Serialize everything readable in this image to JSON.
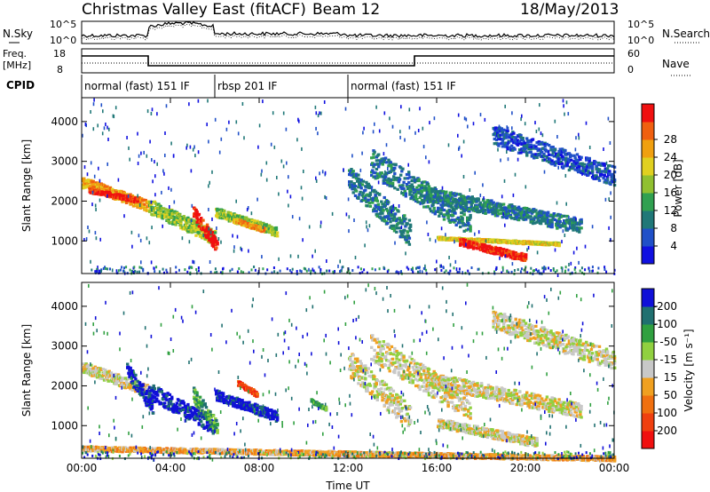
{
  "header": {
    "title": "Christmas Valley East (fitACF)",
    "beam": "Beam 12",
    "date": "18/May/2013"
  },
  "top_panels": {
    "nsky": {
      "label": "N.Sky",
      "ticks": [
        "10^5",
        "10^0"
      ],
      "right_label": "N.Search",
      "right_ticks": [
        "10^5",
        "10^0"
      ]
    },
    "freq": {
      "label_lines": [
        "Freq.",
        "[MHz]"
      ],
      "ticks": [
        "18",
        "8"
      ],
      "right_label": "Nave",
      "right_ticks": [
        "60",
        "0"
      ]
    },
    "cpid": {
      "label": "CPID",
      "programs": [
        {
          "name": "normal (fast) 151 IF",
          "start_hour": 0.0
        },
        {
          "name": "rbsp 201 IF",
          "start_hour": 6.0
        },
        {
          "name": "normal (fast) 151 IF",
          "start_hour": 12.0
        }
      ]
    }
  },
  "chart_data": [
    {
      "type": "heatmap",
      "panel": "power",
      "ylabel": "Slant Range [km]",
      "xlabel": "",
      "x_range_hours": [
        0,
        24
      ],
      "y_range_km": [
        180,
        4600
      ],
      "yticks": [
        1000,
        2000,
        3000,
        4000
      ],
      "colorbar": {
        "label": "Power [dB]",
        "ticks": [
          "4",
          "8",
          "12",
          "16",
          "20",
          "24",
          "28"
        ],
        "colors": [
          "#1010e0",
          "#2050c8",
          "#207878",
          "#30a050",
          "#90c030",
          "#e0d020",
          "#f0a010",
          "#f06010",
          "#f01010"
        ]
      },
      "bands": [
        {
          "t0": 0.0,
          "t1": 3.0,
          "r0": 2500,
          "r1": 1900,
          "level": 6
        },
        {
          "t0": 0.3,
          "t1": 2.5,
          "r0": 2300,
          "r1": 2050,
          "level": 8
        },
        {
          "t0": 3.0,
          "t1": 6.0,
          "r0": 1900,
          "r1": 1100,
          "level": 4
        },
        {
          "t0": 5.0,
          "t1": 6.1,
          "r0": 1700,
          "r1": 900,
          "level": 8
        },
        {
          "t0": 6.0,
          "t1": 8.8,
          "r0": 1750,
          "r1": 1250,
          "level": 4
        },
        {
          "t0": 6.8,
          "t1": 8.2,
          "r0": 1550,
          "r1": 1300,
          "level": 6
        },
        {
          "t0": 12.0,
          "t1": 14.8,
          "r0": 2600,
          "r1": 1200,
          "level": 2
        },
        {
          "t0": 13.0,
          "t1": 17.5,
          "r0": 3000,
          "r1": 1500,
          "level": 2
        },
        {
          "t0": 16.0,
          "t1": 21.5,
          "r0": 1100,
          "r1": 950,
          "level": 5
        },
        {
          "t0": 17.0,
          "t1": 20.0,
          "r0": 1000,
          "r1": 600,
          "level": 8
        },
        {
          "t0": 18.5,
          "t1": 24.0,
          "r0": 3700,
          "r1": 2650,
          "level": 1
        },
        {
          "t0": 15.5,
          "t1": 22.5,
          "r0": 2200,
          "r1": 1400,
          "level": 2
        }
      ]
    },
    {
      "type": "heatmap",
      "panel": "velocity",
      "ylabel": "Slant Range [km]",
      "xlabel": "Time UT",
      "x_range_hours": [
        0,
        24
      ],
      "y_range_km": [
        180,
        4600
      ],
      "yticks": [
        1000,
        2000,
        3000,
        4000
      ],
      "xticks": [
        "00:00",
        "04:00",
        "08:00",
        "12:00",
        "16:00",
        "20:00",
        "00:00"
      ],
      "colorbar": {
        "label": "Velocity [m s⁻¹]",
        "ticks": [
          "200",
          "100",
          "50",
          "15",
          "-15",
          "-50",
          "-100",
          "-200"
        ],
        "colors": [
          "#1010d8",
          "#207070",
          "#30a040",
          "#90d040",
          "#c8c8c8",
          "#f0a020",
          "#f07010",
          "#f04010",
          "#f01010"
        ]
      },
      "bands": [
        {
          "t0": 0.0,
          "t1": 3.0,
          "r0": 2500,
          "r1": 1900,
          "level": 4
        },
        {
          "t0": 2.0,
          "t1": 3.2,
          "r0": 2400,
          "r1": 1500,
          "level": 0
        },
        {
          "t0": 3.0,
          "t1": 6.0,
          "r0": 1900,
          "r1": 1000,
          "level": 0
        },
        {
          "t0": 5.0,
          "t1": 6.1,
          "r0": 1800,
          "r1": 950,
          "level": 2
        },
        {
          "t0": 6.0,
          "t1": 8.8,
          "r0": 1800,
          "r1": 1250,
          "level": 0
        },
        {
          "t0": 7.0,
          "t1": 7.9,
          "r0": 2100,
          "r1": 1800,
          "level": 7
        },
        {
          "t0": 12.0,
          "t1": 14.8,
          "r0": 2600,
          "r1": 1200,
          "level": 4
        },
        {
          "t0": 13.0,
          "t1": 17.5,
          "r0": 3000,
          "r1": 1500,
          "level": 4
        },
        {
          "t0": 16.0,
          "t1": 20.5,
          "r0": 1100,
          "r1": 600,
          "level": 4
        },
        {
          "t0": 18.5,
          "t1": 24.0,
          "r0": 3700,
          "r1": 2650,
          "level": 4
        },
        {
          "t0": 15.5,
          "t1": 22.5,
          "r0": 2200,
          "r1": 1400,
          "level": 4
        },
        {
          "t0": 10.3,
          "t1": 11.0,
          "r0": 1650,
          "r1": 1450,
          "level": 2
        },
        {
          "t0": 0.0,
          "t1": 24.0,
          "r0": 450,
          "r1": 200,
          "level": 5
        }
      ]
    }
  ]
}
